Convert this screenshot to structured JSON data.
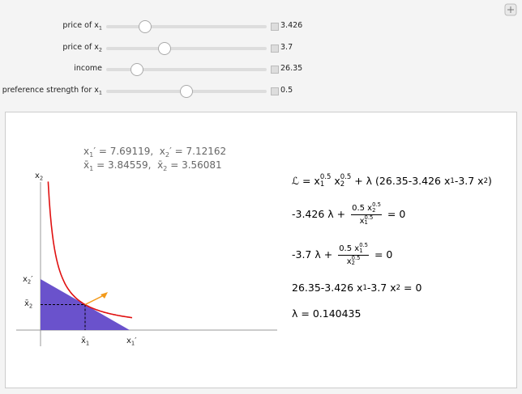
{
  "controls": [
    {
      "label": [
        {
          "t": "price of x",
          "sub": "1"
        }
      ],
      "value": "3.426"
    },
    {
      "label": [
        {
          "t": "price of x",
          "sub": "2"
        }
      ],
      "value": "3.7"
    },
    {
      "label": [
        {
          "t": "income"
        }
      ],
      "value": "26.35"
    },
    {
      "label": [
        {
          "t": "preference strength for x",
          "sub": "1"
        }
      ],
      "value": "0.5"
    }
  ],
  "readout": [
    [
      {
        "t": "x",
        "sub": "1"
      },
      {
        "t": "′ = "
      },
      {
        "n": 7.69119
      },
      {
        "t": ",  x",
        "sub": "2"
      },
      {
        "t": "′ = "
      },
      {
        "n": 7.12162
      }
    ],
    [
      {
        "t": "x̄",
        "sub": "1"
      },
      {
        "t": " = "
      },
      {
        "n": 3.84559
      },
      {
        "t": ",  x̄",
        "sub": "2"
      },
      {
        "t": " = "
      },
      {
        "n": 3.56081
      }
    ]
  ],
  "plot_labels": {
    "y_axis": [
      {
        "t": "x",
        "sub": "2"
      }
    ],
    "x2_prime": [
      {
        "t": "x",
        "sub": "2"
      },
      {
        "t": "′"
      }
    ],
    "x2_bar": [
      {
        "t": "x̄",
        "sub": "2"
      }
    ],
    "x1_bar": [
      {
        "t": "x̄",
        "sub": "1"
      }
    ],
    "x1_prime": [
      {
        "t": "x",
        "sub": "1"
      },
      {
        "t": "′"
      }
    ]
  },
  "equations": [
    [
      {
        "t": "ℒ = x",
        "sub": "1",
        "sup": "0.5"
      },
      {
        "t": " x",
        "sub": "2",
        "sup": "0.5"
      },
      {
        "t": " + λ (26.35-3.426 x",
        "sub": "1"
      },
      {
        "t": "-3.7 x",
        "sub": "2"
      },
      {
        "t": ")"
      }
    ],
    [
      {
        "t": "-3.426 λ + "
      },
      {
        "frac": {
          "num": [
            {
              "t": "0.5 x",
              "sub": "2",
              "sup": "0.5"
            }
          ],
          "den": [
            {
              "t": "x",
              "sub": "1",
              "sup": "0.5"
            }
          ]
        }
      },
      {
        "t": " = 0"
      }
    ],
    [
      {
        "t": "-3.7 λ + "
      },
      {
        "frac": {
          "num": [
            {
              "t": "0.5 x",
              "sub": "1",
              "sup": "0.5"
            }
          ],
          "den": [
            {
              "t": "x",
              "sub": "2",
              "sup": "0.5"
            }
          ]
        }
      },
      {
        "t": " = 0"
      }
    ],
    [
      {
        "t": "26.35-3.426 x",
        "sub": "1"
      },
      {
        "t": "-3.7 x",
        "sub": "2"
      },
      {
        "t": " = 0"
      }
    ],
    [
      {
        "t": "λ = 0.140435"
      }
    ]
  ]
}
